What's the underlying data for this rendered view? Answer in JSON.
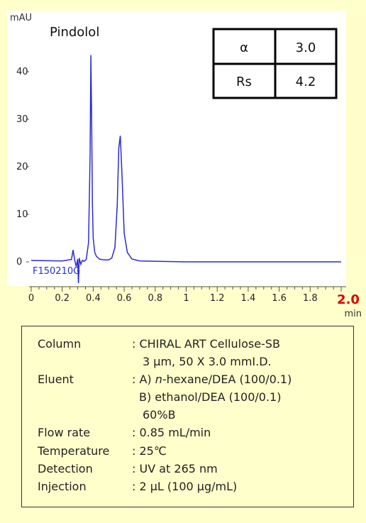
{
  "chart_data": {
    "type": "line",
    "title": "Pindolol",
    "sample_id": "F150210G",
    "xlabel": "min",
    "ylabel": "mAU",
    "xlim": [
      0,
      2.0
    ],
    "ylim": [
      -5,
      50
    ],
    "x_ticks": [
      "0",
      "0.2",
      "0.4",
      "0.6",
      "0.8",
      "1",
      "1.2",
      "1.4",
      "1.6",
      "1.8",
      "2.0"
    ],
    "y_ticks": [
      "0",
      "10",
      "20",
      "30",
      "40"
    ],
    "grid": false,
    "line_color": "#2b2bd6",
    "series": [
      {
        "x": [
          0.0,
          0.2,
          0.26,
          0.27,
          0.28,
          0.29,
          0.3,
          0.305,
          0.31,
          0.32,
          0.33,
          0.34,
          0.355,
          0.37,
          0.38,
          0.385,
          0.39,
          0.395,
          0.4,
          0.41,
          0.42,
          0.44,
          0.47,
          0.5,
          0.52,
          0.54,
          0.555,
          0.565,
          0.575,
          0.585,
          0.6,
          0.62,
          0.65,
          0.7,
          1.0,
          1.5,
          2.0
        ],
        "y": [
          0.3,
          0.2,
          0.5,
          2.5,
          0.5,
          -1.0,
          0.6,
          -4.5,
          0.8,
          -0.5,
          0.3,
          0.1,
          0.5,
          4.0,
          22.0,
          43.5,
          30.0,
          12.0,
          5.0,
          2.0,
          1.2,
          0.6,
          0.4,
          0.4,
          0.8,
          3.0,
          12.0,
          24.0,
          26.5,
          19.0,
          6.0,
          2.0,
          0.6,
          0.2,
          0.0,
          0.0,
          0.0
        ]
      }
    ],
    "annotation_table": [
      [
        "α",
        "3.0"
      ],
      [
        "Rs",
        "4.2"
      ]
    ]
  },
  "conditions": {
    "column_label": "Column",
    "column_value": ": CHIRAL ART Cellulose-SB",
    "column_value_2": "3 μm, 50 X 3.0 mmI.D.",
    "eluent_label": "Eluent",
    "eluent_prefix": ": A) ",
    "eluent_italic": "n",
    "eluent_rest": "-hexane/DEA (100/0.1)",
    "eluent_b": "B) ethanol/DEA (100/0.1)",
    "eluent_ratio": "60%B",
    "flow_label": "Flow rate",
    "flow_value": ": 0.85 mL/min",
    "temp_label": "Temperature",
    "temp_value": ": 25℃",
    "detection_label": "Detection",
    "detection_value": ": UV at 265 nm",
    "injection_label": "Injection",
    "injection_value": ": 2 μL (100 μg/mL)"
  }
}
